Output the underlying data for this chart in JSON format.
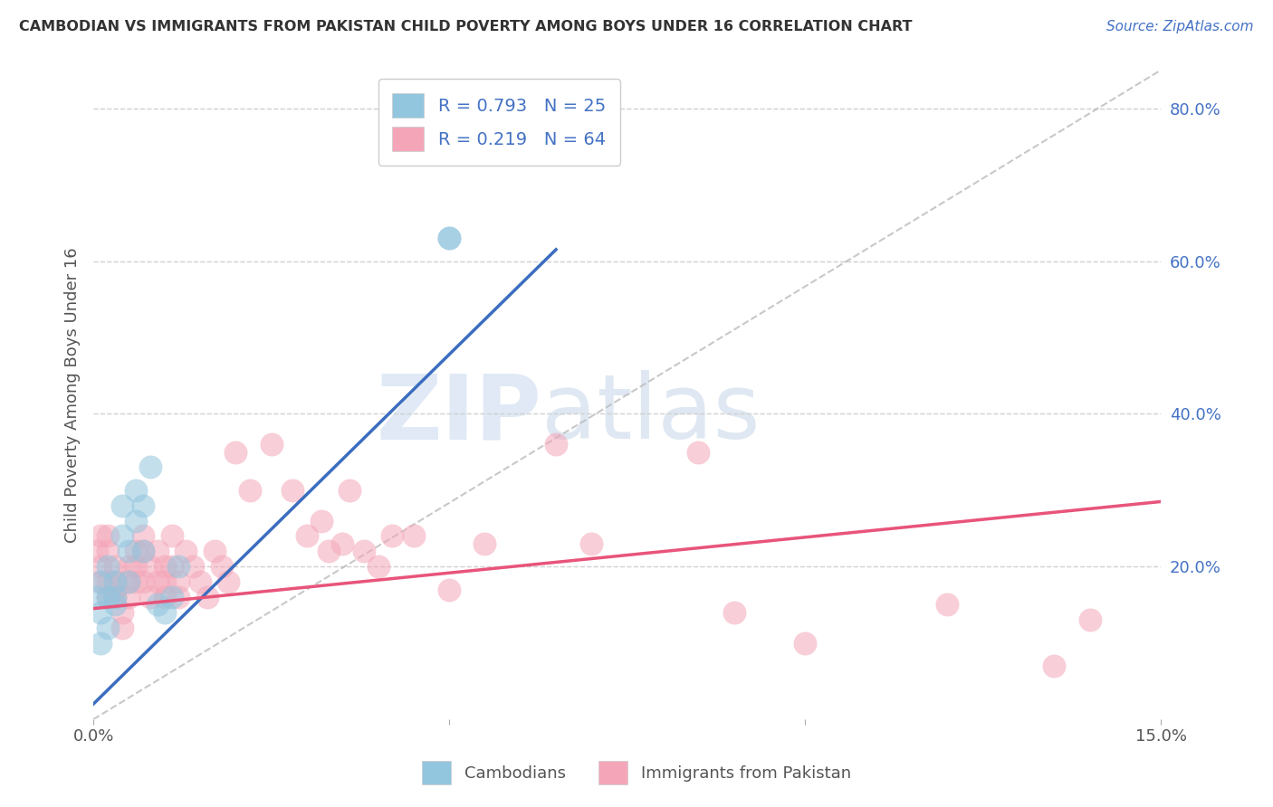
{
  "title": "CAMBODIAN VS IMMIGRANTS FROM PAKISTAN CHILD POVERTY AMONG BOYS UNDER 16 CORRELATION CHART",
  "source": "Source: ZipAtlas.com",
  "ylabel": "Child Poverty Among Boys Under 16",
  "xlabel": "",
  "xlim": [
    0.0,
    0.15
  ],
  "ylim": [
    0.0,
    0.85
  ],
  "y_ticks_right": [
    0.2,
    0.4,
    0.6,
    0.8
  ],
  "y_tick_labels_right": [
    "20.0%",
    "40.0%",
    "60.0%",
    "80.0%"
  ],
  "blue_color": "#92c5de",
  "pink_color": "#f4a6b8",
  "blue_line_color": "#3b6dbf",
  "pink_line_color": "#e8547a",
  "blue_line_x0": 0.0,
  "blue_line_y0": 0.02,
  "blue_line_x1": 0.065,
  "blue_line_y1": 0.615,
  "pink_line_x0": 0.0,
  "pink_line_y0": 0.145,
  "pink_line_x1": 0.15,
  "pink_line_y1": 0.285,
  "cambodians_x": [
    0.0005,
    0.001,
    0.001,
    0.001,
    0.002,
    0.002,
    0.002,
    0.003,
    0.003,
    0.003,
    0.004,
    0.004,
    0.005,
    0.005,
    0.006,
    0.006,
    0.007,
    0.007,
    0.008,
    0.009,
    0.01,
    0.011,
    0.012,
    0.05,
    0.05
  ],
  "cambodians_y": [
    0.16,
    0.14,
    0.18,
    0.1,
    0.16,
    0.2,
    0.12,
    0.16,
    0.18,
    0.15,
    0.28,
    0.24,
    0.22,
    0.18,
    0.3,
    0.26,
    0.22,
    0.28,
    0.33,
    0.15,
    0.14,
    0.16,
    0.2,
    0.63,
    0.63
  ],
  "pakistani_x": [
    0.0005,
    0.001,
    0.001,
    0.001,
    0.002,
    0.002,
    0.002,
    0.002,
    0.003,
    0.003,
    0.003,
    0.003,
    0.004,
    0.004,
    0.005,
    0.005,
    0.005,
    0.006,
    0.006,
    0.006,
    0.007,
    0.007,
    0.007,
    0.008,
    0.008,
    0.009,
    0.009,
    0.01,
    0.01,
    0.01,
    0.011,
    0.011,
    0.012,
    0.012,
    0.013,
    0.014,
    0.015,
    0.016,
    0.017,
    0.018,
    0.019,
    0.02,
    0.022,
    0.025,
    0.028,
    0.03,
    0.032,
    0.033,
    0.035,
    0.036,
    0.038,
    0.04,
    0.042,
    0.045,
    0.05,
    0.055,
    0.065,
    0.07,
    0.085,
    0.09,
    0.1,
    0.12,
    0.135,
    0.14
  ],
  "pakistani_y": [
    0.22,
    0.18,
    0.2,
    0.24,
    0.22,
    0.18,
    0.16,
    0.24,
    0.17,
    0.2,
    0.16,
    0.18,
    0.14,
    0.12,
    0.18,
    0.16,
    0.2,
    0.22,
    0.18,
    0.2,
    0.22,
    0.18,
    0.24,
    0.16,
    0.2,
    0.18,
    0.22,
    0.16,
    0.2,
    0.18,
    0.24,
    0.2,
    0.18,
    0.16,
    0.22,
    0.2,
    0.18,
    0.16,
    0.22,
    0.2,
    0.18,
    0.35,
    0.3,
    0.36,
    0.3,
    0.24,
    0.26,
    0.22,
    0.23,
    0.3,
    0.22,
    0.2,
    0.24,
    0.24,
    0.17,
    0.23,
    0.36,
    0.23,
    0.35,
    0.14,
    0.1,
    0.15,
    0.07,
    0.13
  ],
  "watermark_zip": "ZIP",
  "watermark_atlas": "atlas",
  "background_color": "#ffffff",
  "grid_color": "#d0d0d0"
}
